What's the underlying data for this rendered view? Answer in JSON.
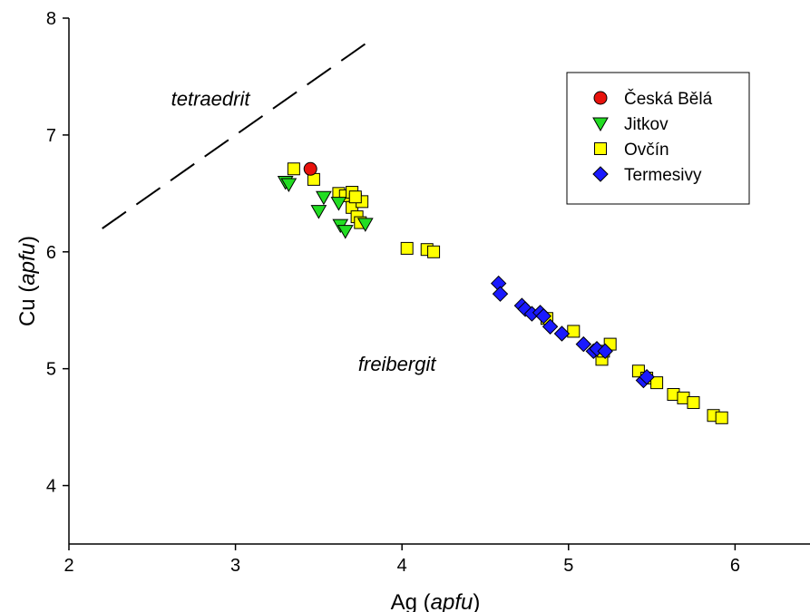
{
  "chart_data": {
    "type": "scatter",
    "xlabel": {
      "main": "Ag",
      "unit": "apfu"
    },
    "ylabel": {
      "main": "Cu",
      "unit": "apfu"
    },
    "xlim": [
      2,
      6.45
    ],
    "ylim": [
      3.5,
      8
    ],
    "xticks": [
      2,
      3,
      4,
      5,
      6
    ],
    "yticks": [
      4,
      5,
      6,
      7,
      8
    ],
    "x_tick_labels": [
      "2",
      "3",
      "4",
      "5",
      "6"
    ],
    "y_tick_labels": [
      "4",
      "5",
      "6",
      "7",
      "8"
    ],
    "grid": false,
    "legend_position": "top-right",
    "annotations": [
      {
        "text": "tetraedrit",
        "x": 2.85,
        "y": 7.25
      },
      {
        "text": "freibergit",
        "x": 3.97,
        "y": 4.98
      }
    ],
    "reference_line": {
      "style": "dashed",
      "x": [
        2.2,
        3.8
      ],
      "y": [
        6.2,
        7.8
      ]
    },
    "series": [
      {
        "name": "Česká Bělá",
        "marker": "circle",
        "color": "#e8120c",
        "x": [
          3.45
        ],
        "y": [
          6.71
        ]
      },
      {
        "name": "Jitkov",
        "marker": "triangle-down",
        "color": "#22dd22",
        "x": [
          3.3,
          3.32,
          3.5,
          3.53,
          3.62,
          3.63,
          3.66,
          3.78
        ],
        "y": [
          6.6,
          6.58,
          6.35,
          6.47,
          6.42,
          6.23,
          6.18,
          6.24
        ]
      },
      {
        "name": "Ovčín",
        "marker": "square",
        "color": "#ffff00",
        "x": [
          3.35,
          3.47,
          3.62,
          3.66,
          3.7,
          3.72,
          3.7,
          3.73,
          3.76,
          3.72,
          3.75,
          4.03,
          4.15,
          4.19,
          4.87,
          5.03,
          5.2,
          5.21,
          5.25,
          5.42,
          5.47,
          5.53,
          5.63,
          5.69,
          5.75,
          5.87,
          5.92
        ],
        "y": [
          6.71,
          6.62,
          6.5,
          6.48,
          6.51,
          6.45,
          6.38,
          6.3,
          6.43,
          6.47,
          6.25,
          6.03,
          6.02,
          6.0,
          5.43,
          5.32,
          5.08,
          5.15,
          5.21,
          4.98,
          4.92,
          4.88,
          4.78,
          4.75,
          4.71,
          4.6,
          4.58
        ]
      },
      {
        "name": "Termesivy",
        "marker": "diamond",
        "color": "#1a1aff",
        "x": [
          4.58,
          4.59,
          4.72,
          4.74,
          4.78,
          4.83,
          4.85,
          4.89,
          4.96,
          5.09,
          5.15,
          5.17,
          5.22,
          5.45,
          5.47
        ],
        "y": [
          5.73,
          5.64,
          5.54,
          5.51,
          5.47,
          5.48,
          5.45,
          5.36,
          5.3,
          5.21,
          5.15,
          5.17,
          5.15,
          4.9,
          4.93
        ]
      }
    ]
  }
}
